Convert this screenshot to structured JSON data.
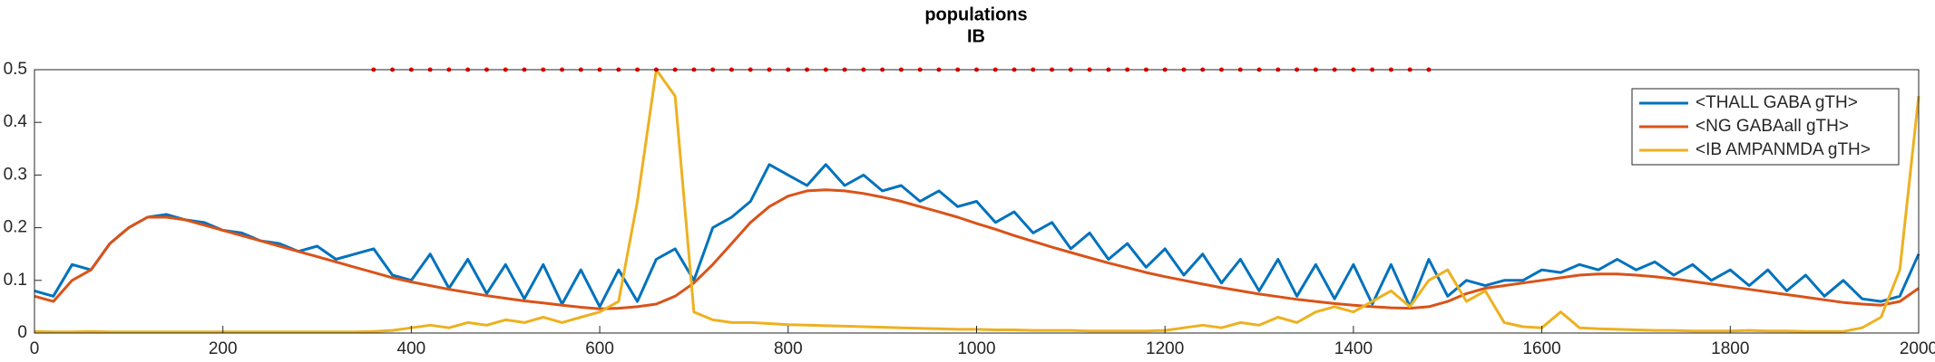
{
  "chart_data": {
    "type": "line",
    "title": "populations",
    "subtitle": "IB",
    "x": [
      0,
      20,
      40,
      60,
      80,
      100,
      120,
      140,
      160,
      180,
      200,
      220,
      240,
      260,
      280,
      300,
      320,
      340,
      360,
      380,
      400,
      420,
      440,
      460,
      480,
      500,
      520,
      540,
      560,
      580,
      600,
      620,
      640,
      660,
      680,
      700,
      720,
      740,
      760,
      780,
      800,
      820,
      840,
      860,
      880,
      900,
      920,
      940,
      960,
      980,
      1000,
      1020,
      1040,
      1060,
      1080,
      1100,
      1120,
      1140,
      1160,
      1180,
      1200,
      1220,
      1240,
      1260,
      1280,
      1300,
      1320,
      1340,
      1360,
      1380,
      1400,
      1420,
      1440,
      1460,
      1480,
      1500,
      1520,
      1540,
      1560,
      1580,
      1600,
      1620,
      1640,
      1660,
      1680,
      1700,
      1720,
      1740,
      1760,
      1780,
      1800,
      1820,
      1840,
      1860,
      1880,
      1900,
      1920,
      1940,
      1960,
      1980,
      2000
    ],
    "series": [
      {
        "name": "<THALL GABA gTH>",
        "color": "#0072bd",
        "values": [
          0.08,
          0.07,
          0.13,
          0.12,
          0.17,
          0.2,
          0.22,
          0.225,
          0.215,
          0.21,
          0.195,
          0.19,
          0.175,
          0.17,
          0.155,
          0.165,
          0.14,
          0.15,
          0.16,
          0.11,
          0.1,
          0.15,
          0.085,
          0.14,
          0.075,
          0.13,
          0.065,
          0.13,
          0.055,
          0.12,
          0.05,
          0.12,
          0.06,
          0.14,
          0.16,
          0.1,
          0.2,
          0.22,
          0.25,
          0.32,
          0.3,
          0.28,
          0.32,
          0.28,
          0.3,
          0.27,
          0.28,
          0.25,
          0.27,
          0.24,
          0.25,
          0.21,
          0.23,
          0.19,
          0.21,
          0.16,
          0.19,
          0.14,
          0.17,
          0.125,
          0.16,
          0.11,
          0.15,
          0.095,
          0.14,
          0.08,
          0.14,
          0.07,
          0.13,
          0.065,
          0.13,
          0.055,
          0.13,
          0.05,
          0.14,
          0.07,
          0.1,
          0.09,
          0.1,
          0.1,
          0.12,
          0.115,
          0.13,
          0.12,
          0.14,
          0.12,
          0.135,
          0.11,
          0.13,
          0.1,
          0.12,
          0.09,
          0.12,
          0.08,
          0.11,
          0.07,
          0.1,
          0.065,
          0.06,
          0.07,
          0.15
        ]
      },
      {
        "name": "<NG GABAall gTH>",
        "color": "#d95319",
        "values": [
          0.07,
          0.06,
          0.1,
          0.12,
          0.17,
          0.2,
          0.22,
          0.22,
          0.215,
          0.205,
          0.195,
          0.185,
          0.175,
          0.165,
          0.155,
          0.145,
          0.135,
          0.125,
          0.115,
          0.105,
          0.097,
          0.09,
          0.083,
          0.077,
          0.071,
          0.066,
          0.061,
          0.057,
          0.053,
          0.049,
          0.046,
          0.047,
          0.05,
          0.055,
          0.07,
          0.095,
          0.13,
          0.17,
          0.21,
          0.24,
          0.26,
          0.27,
          0.272,
          0.27,
          0.265,
          0.258,
          0.25,
          0.24,
          0.23,
          0.22,
          0.208,
          0.197,
          0.185,
          0.174,
          0.163,
          0.153,
          0.143,
          0.133,
          0.124,
          0.115,
          0.107,
          0.1,
          0.093,
          0.086,
          0.08,
          0.074,
          0.069,
          0.064,
          0.06,
          0.056,
          0.053,
          0.05,
          0.048,
          0.047,
          0.05,
          0.06,
          0.075,
          0.085,
          0.09,
          0.095,
          0.1,
          0.105,
          0.11,
          0.112,
          0.112,
          0.11,
          0.107,
          0.103,
          0.098,
          0.093,
          0.088,
          0.083,
          0.078,
          0.073,
          0.068,
          0.063,
          0.058,
          0.055,
          0.053,
          0.06,
          0.085
        ]
      },
      {
        "name": "<IB AMPANMDA gTH>",
        "color": "#edb120",
        "values": [
          0.003,
          0.002,
          0.002,
          0.003,
          0.002,
          0.002,
          0.002,
          0.002,
          0.002,
          0.002,
          0.002,
          0.002,
          0.002,
          0.002,
          0.002,
          0.002,
          0.002,
          0.002,
          0.003,
          0.005,
          0.01,
          0.015,
          0.01,
          0.02,
          0.015,
          0.025,
          0.02,
          0.03,
          0.02,
          0.03,
          0.04,
          0.06,
          0.25,
          0.5,
          0.45,
          0.04,
          0.025,
          0.02,
          0.02,
          0.018,
          0.016,
          0.015,
          0.014,
          0.013,
          0.012,
          0.011,
          0.01,
          0.009,
          0.008,
          0.007,
          0.007,
          0.006,
          0.006,
          0.005,
          0.005,
          0.005,
          0.004,
          0.004,
          0.004,
          0.004,
          0.005,
          0.01,
          0.015,
          0.01,
          0.02,
          0.015,
          0.03,
          0.02,
          0.04,
          0.05,
          0.04,
          0.06,
          0.08,
          0.05,
          0.1,
          0.12,
          0.06,
          0.08,
          0.02,
          0.012,
          0.01,
          0.04,
          0.01,
          0.008,
          0.007,
          0.006,
          0.005,
          0.005,
          0.004,
          0.004,
          0.004,
          0.005,
          0.004,
          0.004,
          0.003,
          0.003,
          0.003,
          0.01,
          0.03,
          0.12,
          0.45
        ]
      },
      {
        "color": "#ff0000",
        "style": "dotted",
        "values": [
          null,
          null,
          null,
          null,
          null,
          null,
          null,
          null,
          null,
          null,
          null,
          null,
          null,
          null,
          null,
          null,
          null,
          null,
          0.5,
          0.5,
          0.5,
          0.5,
          0.5,
          0.5,
          0.5,
          0.5,
          0.5,
          0.5,
          0.5,
          0.5,
          0.5,
          0.5,
          0.5,
          0.5,
          0.5,
          0.5,
          0.5,
          0.5,
          0.5,
          0.5,
          0.5,
          0.5,
          0.5,
          0.5,
          0.5,
          0.5,
          0.5,
          0.5,
          0.5,
          0.5,
          0.5,
          0.5,
          0.5,
          0.5,
          0.5,
          0.5,
          0.5,
          0.5,
          0.5,
          0.5,
          0.5,
          0.5,
          0.5,
          0.5,
          0.5,
          0.5,
          0.5,
          0.5,
          0.5,
          0.5,
          0.5,
          0.5,
          0.5,
          0.5,
          0.5,
          null,
          null,
          null,
          null,
          null,
          null,
          null,
          null,
          null,
          null,
          null,
          null,
          null,
          null,
          null,
          null,
          null,
          null,
          null,
          null,
          null,
          null,
          null,
          null,
          null,
          null
        ]
      }
    ],
    "xlim": [
      0,
      2000
    ],
    "xticks": [
      0,
      200,
      400,
      600,
      800,
      1000,
      1200,
      1400,
      1600,
      1800,
      2000
    ],
    "ylim": [
      0,
      0.5
    ],
    "yticks": [
      0,
      0.1,
      0.2,
      0.3,
      0.4,
      0.5
    ],
    "legend": "northeast"
  }
}
